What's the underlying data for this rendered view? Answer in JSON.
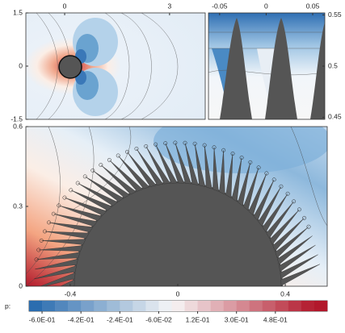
{
  "panels": [
    {
      "xlim": [
        -1.11,
        4.02
      ],
      "ylim": [
        -1.5,
        1.5
      ],
      "xticks": [
        0,
        3
      ],
      "yticks": [
        1.5,
        0,
        -1.5
      ]
    },
    {
      "xlim": [
        -0.062,
        0.063
      ],
      "ylim": [
        0.448,
        0.552
      ],
      "xticks": [
        -0.05,
        0,
        0.05
      ],
      "yticks": [
        0.55,
        0.5,
        0.45
      ]
    },
    {
      "xlim": [
        -0.565,
        0.556
      ],
      "ylim": [
        0,
        0.6
      ],
      "xticks": [
        -0.4,
        0,
        0.4
      ],
      "yticks": [
        0.6,
        0.3,
        0
      ]
    }
  ],
  "colorbar": {
    "label": "p:",
    "lim": [
      -0.66,
      0.72
    ],
    "step": 0.06,
    "ticks": [
      {
        "value": -0.6,
        "label": "-6.0E-01"
      },
      {
        "value": -0.42,
        "label": "-4.2E-01"
      },
      {
        "value": -0.24,
        "label": "-2.4E-01"
      },
      {
        "value": -0.06,
        "label": "-6.0E-02"
      },
      {
        "value": 0.12,
        "label": "1.2E-01"
      },
      {
        "value": 0.3,
        "label": "3.0E-01"
      },
      {
        "value": 0.48,
        "label": "4.8E-01"
      }
    ]
  }
}
